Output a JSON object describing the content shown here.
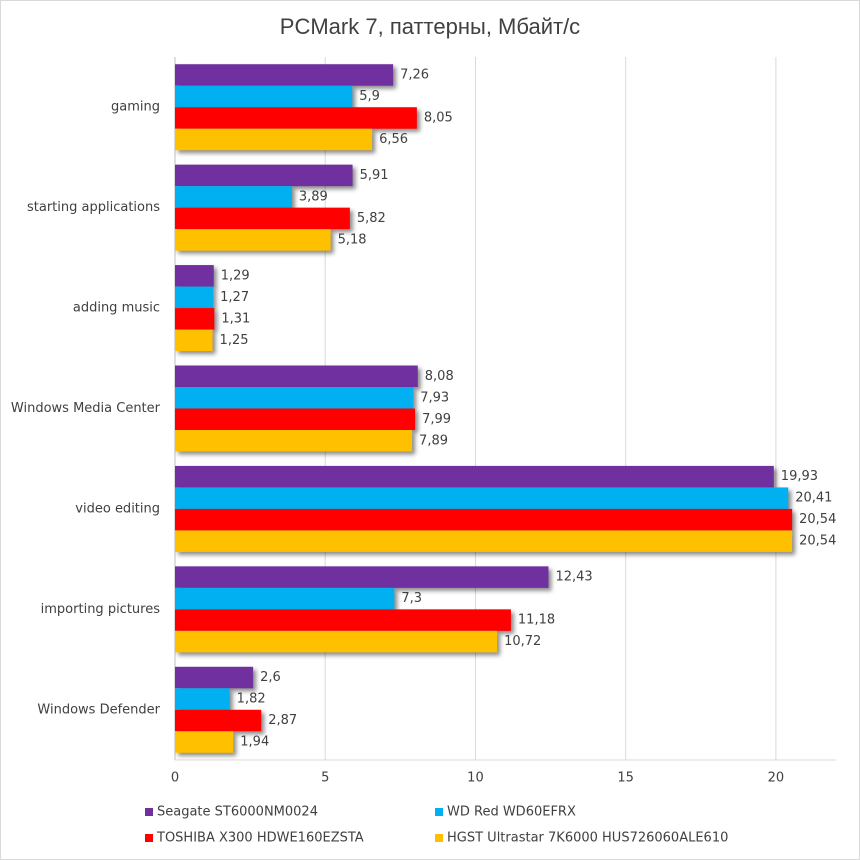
{
  "chart_data": {
    "type": "hbar",
    "title": "PCMark 7, паттерны, Мбайт/с",
    "categories": [
      "gaming",
      "starting applications",
      "adding music",
      "Windows Media Center",
      "video editing",
      "importing pictures",
      "Windows Defender"
    ],
    "series": [
      {
        "name": "Seagate ST6000NM0024",
        "color": "#7030a0",
        "values": [
          7.26,
          5.91,
          1.29,
          8.08,
          19.93,
          12.43,
          2.6
        ],
        "value_labels": [
          "7,26",
          "5,91",
          "1,29",
          "8,08",
          "19,93",
          "12,43",
          "2,6"
        ]
      },
      {
        "name": "WD Red WD60EFRX",
        "color": "#00b0f0",
        "values": [
          5.9,
          3.89,
          1.27,
          7.93,
          20.41,
          7.3,
          1.82
        ],
        "value_labels": [
          "5,9",
          "3,89",
          "1,27",
          "7,93",
          "20,41",
          "7,3",
          "1,82"
        ]
      },
      {
        "name": "TOSHIBA X300 HDWE160EZSTA",
        "color": "#ff0000",
        "values": [
          8.05,
          5.82,
          1.31,
          7.99,
          20.54,
          11.18,
          2.87
        ],
        "value_labels": [
          "8,05",
          "5,82",
          "1,31",
          "7,99",
          "20,54",
          "11,18",
          "2,87"
        ]
      },
      {
        "name": "HGST Ultrastar 7K6000 HUS726060ALE610",
        "color": "#ffc000",
        "values": [
          6.56,
          5.18,
          1.25,
          7.89,
          20.54,
          10.72,
          1.94
        ],
        "value_labels": [
          "6,56",
          "5,18",
          "1,25",
          "7,89",
          "20,54",
          "10,72",
          "1,94"
        ]
      }
    ],
    "xlim": [
      0,
      22
    ],
    "xticks": [
      0,
      5,
      10,
      15,
      20
    ],
    "grid": true,
    "legend": "bottom"
  }
}
